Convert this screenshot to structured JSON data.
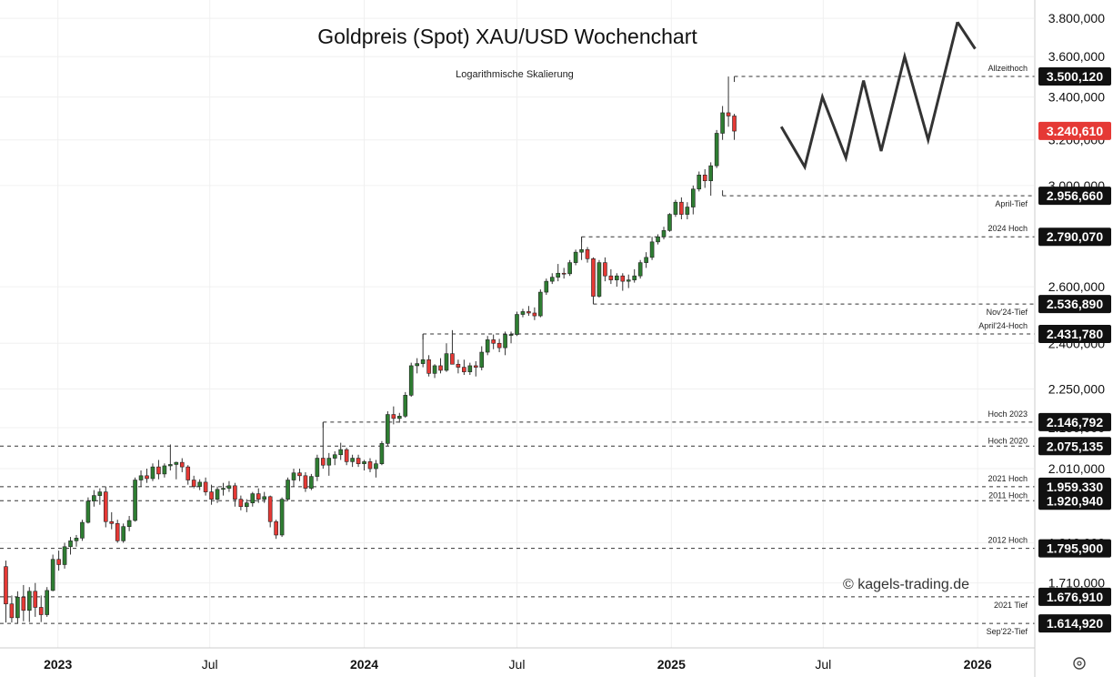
{
  "chart_data": {
    "type": "candlestick",
    "title": "Goldpreis (Spot) XAU/USD Wochenchart",
    "subtitle": "Logarithmische Skalierung",
    "watermark": "© kagels-trading.de",
    "scale": "log",
    "ylim": [
      1560,
      3900
    ],
    "y_ticks": [
      "1.710,000",
      "1.810,000",
      "2.010,000",
      "2.130,000",
      "2.250,000",
      "2.400,000",
      "2.600,000",
      "3.000,000",
      "3.200,000",
      "3.400,000",
      "3.600,000",
      "3.800,000"
    ],
    "x_labels": [
      "2023",
      "Jul",
      "2024",
      "Jul",
      "2025",
      "Jul",
      "2026"
    ],
    "x_label_dates": [
      "2023-01-01",
      "2023-07-01",
      "2024-01-01",
      "2024-07-01",
      "2025-01-01",
      "2025-07-01",
      "2026-01-01"
    ],
    "x_range": [
      "2022-10-24",
      "2026-03-09"
    ],
    "colors": {
      "up": "#2e7d32",
      "down": "#e53935",
      "wick": "#333333",
      "level_line": "#333333",
      "projection": "#333333",
      "current_badge": "#e53935",
      "level_badge": "#111111",
      "grid": "#f0f0f0"
    },
    "grid": true,
    "candles": [
      {
        "o": 1750,
        "h": 1765,
        "l": 1617,
        "c": 1660
      },
      {
        "o": 1660,
        "h": 1680,
        "l": 1617,
        "c": 1628
      },
      {
        "o": 1628,
        "h": 1690,
        "l": 1615,
        "c": 1676
      },
      {
        "o": 1676,
        "h": 1705,
        "l": 1620,
        "c": 1645
      },
      {
        "o": 1645,
        "h": 1700,
        "l": 1618,
        "c": 1690
      },
      {
        "o": 1690,
        "h": 1710,
        "l": 1630,
        "c": 1652
      },
      {
        "o": 1652,
        "h": 1680,
        "l": 1618,
        "c": 1635
      },
      {
        "o": 1635,
        "h": 1700,
        "l": 1630,
        "c": 1692
      },
      {
        "o": 1692,
        "h": 1780,
        "l": 1690,
        "c": 1768
      },
      {
        "o": 1768,
        "h": 1790,
        "l": 1740,
        "c": 1755
      },
      {
        "o": 1755,
        "h": 1810,
        "l": 1745,
        "c": 1800
      },
      {
        "o": 1800,
        "h": 1825,
        "l": 1780,
        "c": 1815
      },
      {
        "o": 1815,
        "h": 1830,
        "l": 1800,
        "c": 1822
      },
      {
        "o": 1822,
        "h": 1870,
        "l": 1815,
        "c": 1863
      },
      {
        "o": 1863,
        "h": 1930,
        "l": 1860,
        "c": 1920
      },
      {
        "o": 1920,
        "h": 1950,
        "l": 1905,
        "c": 1935
      },
      {
        "o": 1935,
        "h": 1955,
        "l": 1910,
        "c": 1945
      },
      {
        "o": 1945,
        "h": 1960,
        "l": 1850,
        "c": 1865
      },
      {
        "o": 1865,
        "h": 1890,
        "l": 1845,
        "c": 1860
      },
      {
        "o": 1860,
        "h": 1870,
        "l": 1810,
        "c": 1815
      },
      {
        "o": 1815,
        "h": 1860,
        "l": 1810,
        "c": 1852
      },
      {
        "o": 1852,
        "h": 1880,
        "l": 1840,
        "c": 1868
      },
      {
        "o": 1868,
        "h": 1985,
        "l": 1865,
        "c": 1978
      },
      {
        "o": 1978,
        "h": 2005,
        "l": 1960,
        "c": 1990
      },
      {
        "o": 1990,
        "h": 2010,
        "l": 1970,
        "c": 1982
      },
      {
        "o": 1982,
        "h": 2025,
        "l": 1975,
        "c": 2015
      },
      {
        "o": 2015,
        "h": 2035,
        "l": 1980,
        "c": 1995
      },
      {
        "o": 1995,
        "h": 2025,
        "l": 1985,
        "c": 2018
      },
      {
        "o": 2018,
        "h": 2080,
        "l": 2005,
        "c": 2022
      },
      {
        "o": 2022,
        "h": 2030,
        "l": 1980,
        "c": 2028
      },
      {
        "o": 2028,
        "h": 2040,
        "l": 2000,
        "c": 2015
      },
      {
        "o": 2015,
        "h": 2020,
        "l": 1965,
        "c": 1978
      },
      {
        "o": 1978,
        "h": 1990,
        "l": 1955,
        "c": 1960
      },
      {
        "o": 1960,
        "h": 1980,
        "l": 1950,
        "c": 1972
      },
      {
        "o": 1972,
        "h": 1985,
        "l": 1935,
        "c": 1945
      },
      {
        "o": 1945,
        "h": 1965,
        "l": 1910,
        "c": 1925
      },
      {
        "o": 1925,
        "h": 1960,
        "l": 1915,
        "c": 1952
      },
      {
        "o": 1952,
        "h": 1970,
        "l": 1935,
        "c": 1955
      },
      {
        "o": 1955,
        "h": 1975,
        "l": 1945,
        "c": 1962
      },
      {
        "o": 1962,
        "h": 1970,
        "l": 1905,
        "c": 1925
      },
      {
        "o": 1925,
        "h": 1935,
        "l": 1895,
        "c": 1905
      },
      {
        "o": 1905,
        "h": 1925,
        "l": 1890,
        "c": 1915
      },
      {
        "o": 1915,
        "h": 1945,
        "l": 1905,
        "c": 1940
      },
      {
        "o": 1940,
        "h": 1955,
        "l": 1915,
        "c": 1925
      },
      {
        "o": 1925,
        "h": 1945,
        "l": 1915,
        "c": 1932
      },
      {
        "o": 1932,
        "h": 1935,
        "l": 1850,
        "c": 1865
      },
      {
        "o": 1865,
        "h": 1870,
        "l": 1820,
        "c": 1830
      },
      {
        "o": 1830,
        "h": 1930,
        "l": 1825,
        "c": 1925
      },
      {
        "o": 1925,
        "h": 1985,
        "l": 1920,
        "c": 1978
      },
      {
        "o": 1978,
        "h": 2010,
        "l": 1960,
        "c": 1998
      },
      {
        "o": 1998,
        "h": 2010,
        "l": 1975,
        "c": 1990
      },
      {
        "o": 1990,
        "h": 2000,
        "l": 1945,
        "c": 1955
      },
      {
        "o": 1955,
        "h": 1995,
        "l": 1950,
        "c": 1988
      },
      {
        "o": 1988,
        "h": 2050,
        "l": 1975,
        "c": 2040
      },
      {
        "o": 2040,
        "h": 2146,
        "l": 2010,
        "c": 2020
      },
      {
        "o": 2020,
        "h": 2055,
        "l": 1990,
        "c": 2040
      },
      {
        "o": 2040,
        "h": 2060,
        "l": 2020,
        "c": 2050
      },
      {
        "o": 2050,
        "h": 2085,
        "l": 2035,
        "c": 2065
      },
      {
        "o": 2065,
        "h": 2070,
        "l": 2020,
        "c": 2030
      },
      {
        "o": 2030,
        "h": 2050,
        "l": 2015,
        "c": 2040
      },
      {
        "o": 2040,
        "h": 2050,
        "l": 2015,
        "c": 2024
      },
      {
        "o": 2024,
        "h": 2035,
        "l": 2005,
        "c": 2030
      },
      {
        "o": 2030,
        "h": 2040,
        "l": 2000,
        "c": 2010
      },
      {
        "o": 2010,
        "h": 2035,
        "l": 1985,
        "c": 2024
      },
      {
        "o": 2024,
        "h": 2090,
        "l": 2020,
        "c": 2083
      },
      {
        "o": 2083,
        "h": 2180,
        "l": 2075,
        "c": 2170
      },
      {
        "o": 2170,
        "h": 2195,
        "l": 2140,
        "c": 2158
      },
      {
        "o": 2158,
        "h": 2175,
        "l": 2145,
        "c": 2165
      },
      {
        "o": 2165,
        "h": 2240,
        "l": 2160,
        "c": 2230
      },
      {
        "o": 2230,
        "h": 2335,
        "l": 2225,
        "c": 2325
      },
      {
        "o": 2325,
        "h": 2350,
        "l": 2300,
        "c": 2332
      },
      {
        "o": 2332,
        "h": 2431,
        "l": 2320,
        "c": 2345
      },
      {
        "o": 2345,
        "h": 2360,
        "l": 2290,
        "c": 2300
      },
      {
        "o": 2300,
        "h": 2330,
        "l": 2285,
        "c": 2325
      },
      {
        "o": 2325,
        "h": 2350,
        "l": 2300,
        "c": 2310
      },
      {
        "o": 2310,
        "h": 2400,
        "l": 2305,
        "c": 2365
      },
      {
        "o": 2365,
        "h": 2445,
        "l": 2340,
        "c": 2330
      },
      {
        "o": 2330,
        "h": 2345,
        "l": 2300,
        "c": 2320
      },
      {
        "o": 2320,
        "h": 2345,
        "l": 2295,
        "c": 2305
      },
      {
        "o": 2305,
        "h": 2335,
        "l": 2295,
        "c": 2325
      },
      {
        "o": 2325,
        "h": 2340,
        "l": 2290,
        "c": 2320
      },
      {
        "o": 2320,
        "h": 2390,
        "l": 2310,
        "c": 2370
      },
      {
        "o": 2370,
        "h": 2425,
        "l": 2360,
        "c": 2412
      },
      {
        "o": 2412,
        "h": 2430,
        "l": 2380,
        "c": 2400
      },
      {
        "o": 2400,
        "h": 2415,
        "l": 2370,
        "c": 2385
      },
      {
        "o": 2385,
        "h": 2440,
        "l": 2360,
        "c": 2430
      },
      {
        "o": 2430,
        "h": 2440,
        "l": 2400,
        "c": 2430
      },
      {
        "o": 2430,
        "h": 2510,
        "l": 2425,
        "c": 2500
      },
      {
        "o": 2500,
        "h": 2520,
        "l": 2490,
        "c": 2510
      },
      {
        "o": 2510,
        "h": 2530,
        "l": 2495,
        "c": 2505
      },
      {
        "o": 2505,
        "h": 2525,
        "l": 2480,
        "c": 2495
      },
      {
        "o": 2495,
        "h": 2590,
        "l": 2490,
        "c": 2580
      },
      {
        "o": 2580,
        "h": 2630,
        "l": 2570,
        "c": 2620
      },
      {
        "o": 2620,
        "h": 2650,
        "l": 2610,
        "c": 2635
      },
      {
        "o": 2635,
        "h": 2685,
        "l": 2620,
        "c": 2650
      },
      {
        "o": 2650,
        "h": 2670,
        "l": 2630,
        "c": 2648
      },
      {
        "o": 2648,
        "h": 2700,
        "l": 2640,
        "c": 2690
      },
      {
        "o": 2690,
        "h": 2740,
        "l": 2680,
        "c": 2730
      },
      {
        "o": 2730,
        "h": 2790,
        "l": 2700,
        "c": 2740
      },
      {
        "o": 2740,
        "h": 2750,
        "l": 2690,
        "c": 2705
      },
      {
        "o": 2705,
        "h": 2710,
        "l": 2537,
        "c": 2565
      },
      {
        "o": 2565,
        "h": 2700,
        "l": 2560,
        "c": 2690
      },
      {
        "o": 2690,
        "h": 2710,
        "l": 2620,
        "c": 2640
      },
      {
        "o": 2640,
        "h": 2665,
        "l": 2610,
        "c": 2625
      },
      {
        "o": 2625,
        "h": 2650,
        "l": 2600,
        "c": 2640
      },
      {
        "o": 2640,
        "h": 2650,
        "l": 2585,
        "c": 2620
      },
      {
        "o": 2620,
        "h": 2645,
        "l": 2595,
        "c": 2625
      },
      {
        "o": 2625,
        "h": 2665,
        "l": 2615,
        "c": 2640
      },
      {
        "o": 2640,
        "h": 2700,
        "l": 2630,
        "c": 2690
      },
      {
        "o": 2690,
        "h": 2730,
        "l": 2670,
        "c": 2710
      },
      {
        "o": 2710,
        "h": 2790,
        "l": 2700,
        "c": 2770
      },
      {
        "o": 2770,
        "h": 2800,
        "l": 2760,
        "c": 2790
      },
      {
        "o": 2790,
        "h": 2830,
        "l": 2780,
        "c": 2815
      },
      {
        "o": 2815,
        "h": 2885,
        "l": 2810,
        "c": 2880
      },
      {
        "o": 2880,
        "h": 2940,
        "l": 2870,
        "c": 2930
      },
      {
        "o": 2930,
        "h": 2950,
        "l": 2860,
        "c": 2880
      },
      {
        "o": 2880,
        "h": 2930,
        "l": 2860,
        "c": 2910
      },
      {
        "o": 2910,
        "h": 3000,
        "l": 2880,
        "c": 2985
      },
      {
        "o": 2985,
        "h": 3060,
        "l": 2975,
        "c": 3045
      },
      {
        "o": 3045,
        "h": 3070,
        "l": 2990,
        "c": 3020
      },
      {
        "o": 3020,
        "h": 3100,
        "l": 2957,
        "c": 3085
      },
      {
        "o": 3085,
        "h": 3245,
        "l": 3075,
        "c": 3230
      },
      {
        "o": 3230,
        "h": 3357,
        "l": 3200,
        "c": 3325
      },
      {
        "o": 3325,
        "h": 3500,
        "l": 3260,
        "c": 3310
      },
      {
        "o": 3310,
        "h": 3320,
        "l": 3200,
        "c": 3240
      }
    ],
    "level_lines": [
      {
        "value": 3500.12,
        "label": "3.500,120",
        "note": "Allzeithoch",
        "start": 124
      },
      {
        "value": 2956.66,
        "label": "2.956,660",
        "note": "April-Tief",
        "start": 122
      },
      {
        "value": 2790.07,
        "label": "2.790,070",
        "note": "2024 Hoch",
        "start": 98
      },
      {
        "value": 2536.89,
        "label": "2.536,890",
        "note": "Nov'24-Tief",
        "start": 100
      },
      {
        "value": 2431.78,
        "label": "2.431,780",
        "note": "April'24-Hoch",
        "start": 71
      },
      {
        "value": 2146.792,
        "label": "2.146,792",
        "note": "Hoch 2023",
        "start": 54
      },
      {
        "value": 2075.135,
        "label": "2.075,135",
        "note": "Hoch 2020",
        "start": 0
      },
      {
        "value": 1959.33,
        "label": "1.959,330",
        "note": "2021 Hoch",
        "start": 0
      },
      {
        "value": 1920.94,
        "label": "1.920,940",
        "note": "2011 Hoch",
        "start": 0
      },
      {
        "value": 1795.9,
        "label": "1.795,900",
        "note": "2012 Hoch",
        "start": 0
      },
      {
        "value": 1676.91,
        "label": "1.676,910",
        "note": "2021 Tief",
        "start": 0
      },
      {
        "value": 1614.92,
        "label": "1.614,920",
        "note": "Sep'22-Tief",
        "start": 0
      }
    ],
    "current_price": {
      "value": 3240.61,
      "label": "3.240,610"
    },
    "projection": [
      {
        "date": "2025-05-12",
        "value": 3260
      },
      {
        "date": "2025-06-09",
        "value": 3080
      },
      {
        "date": "2025-06-30",
        "value": 3400
      },
      {
        "date": "2025-07-28",
        "value": 3120
      },
      {
        "date": "2025-08-18",
        "value": 3480
      },
      {
        "date": "2025-09-08",
        "value": 3150
      },
      {
        "date": "2025-10-06",
        "value": 3600
      },
      {
        "date": "2025-11-03",
        "value": 3200
      },
      {
        "date": "2025-12-08",
        "value": 3780
      },
      {
        "date": "2025-12-29",
        "value": 3640
      }
    ]
  }
}
